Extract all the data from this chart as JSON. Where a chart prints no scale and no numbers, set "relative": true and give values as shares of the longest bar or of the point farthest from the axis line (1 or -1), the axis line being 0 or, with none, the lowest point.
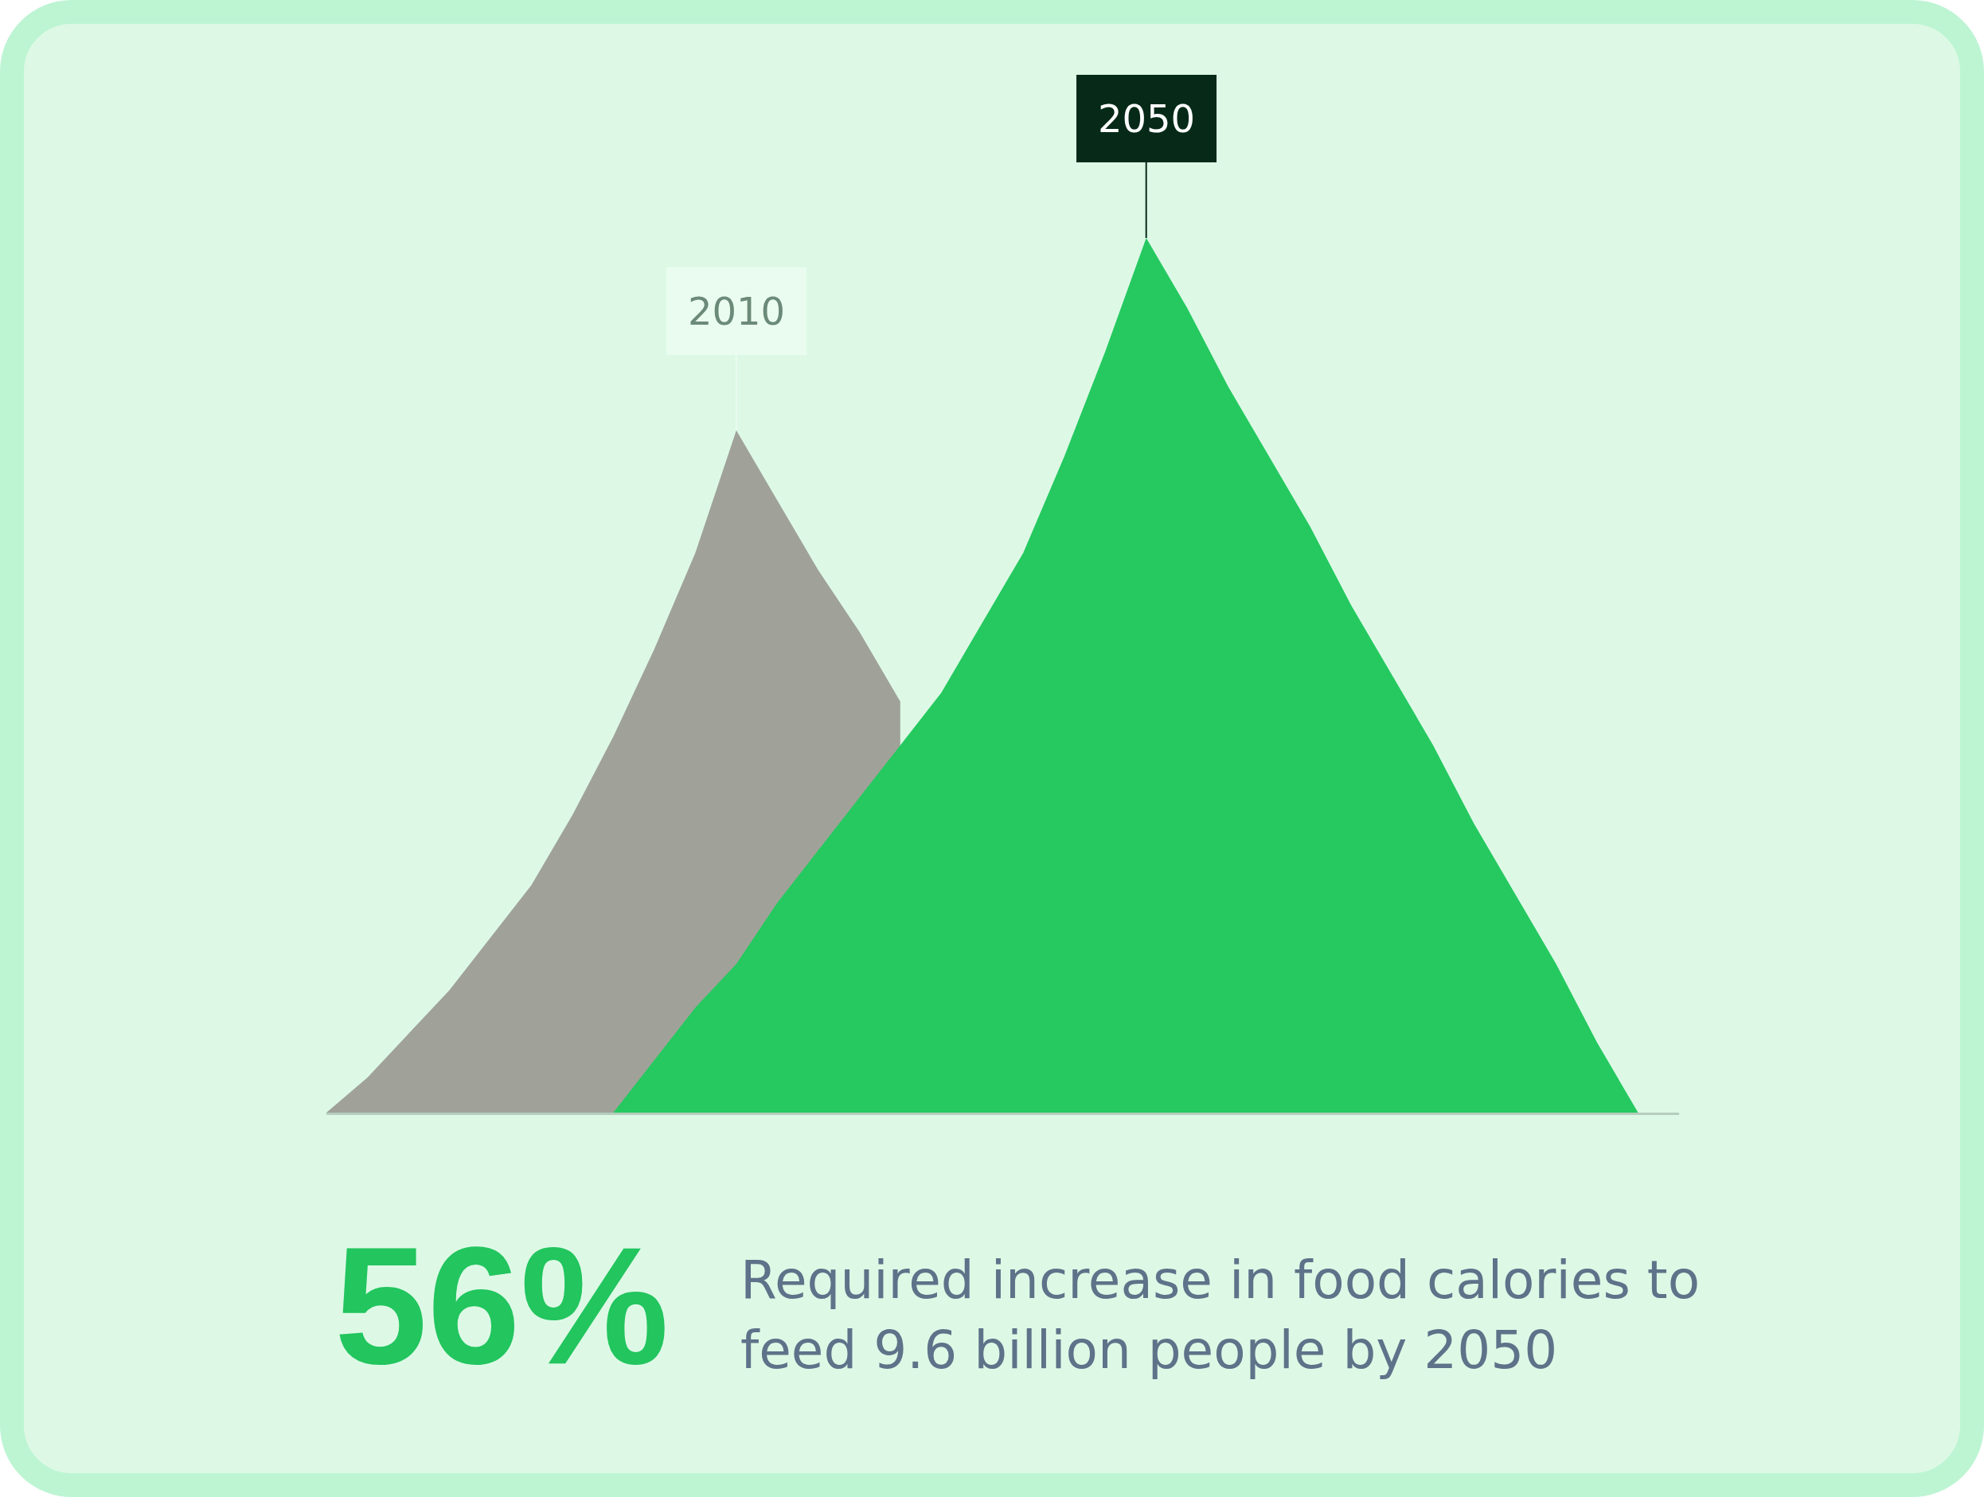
{
  "chart_data": {
    "type": "area",
    "relative": true,
    "categories": [
      null,
      null,
      null,
      null,
      null,
      null,
      null,
      null,
      null,
      null,
      null,
      null,
      null,
      null,
      null,
      null,
      null,
      null,
      null,
      null,
      null,
      null,
      null,
      null,
      null,
      null,
      null,
      null,
      null,
      null,
      null,
      null,
      null,
      null
    ],
    "series": [
      {
        "name": "2010",
        "color": "#a0a299",
        "values": [
          0,
          0.04,
          0.09,
          0.14,
          0.2,
          0.26,
          0.34,
          0.43,
          0.53,
          0.64,
          0.78,
          0.7,
          0.62,
          0.55,
          0.47,
          null,
          null,
          null,
          null,
          null,
          null,
          null,
          null,
          null,
          null,
          null,
          null,
          null,
          null,
          null,
          null,
          null,
          null,
          null
        ]
      },
      {
        "name": "2050",
        "color": "#25c960",
        "values": [
          null,
          null,
          null,
          null,
          null,
          null,
          null,
          0,
          0.06,
          0.12,
          0.17,
          0.24,
          0.3,
          0.36,
          0.42,
          0.48,
          0.56,
          0.64,
          0.75,
          0.87,
          1,
          0.92,
          0.83,
          0.75,
          0.67,
          0.58,
          0.5,
          0.42,
          0.33,
          0.25,
          0.17,
          0.08,
          0,
          null
        ]
      }
    ],
    "annotations": [
      "56%",
      "Required increase in food calories to feed 9.6 billion people by 2050"
    ]
  }
}
